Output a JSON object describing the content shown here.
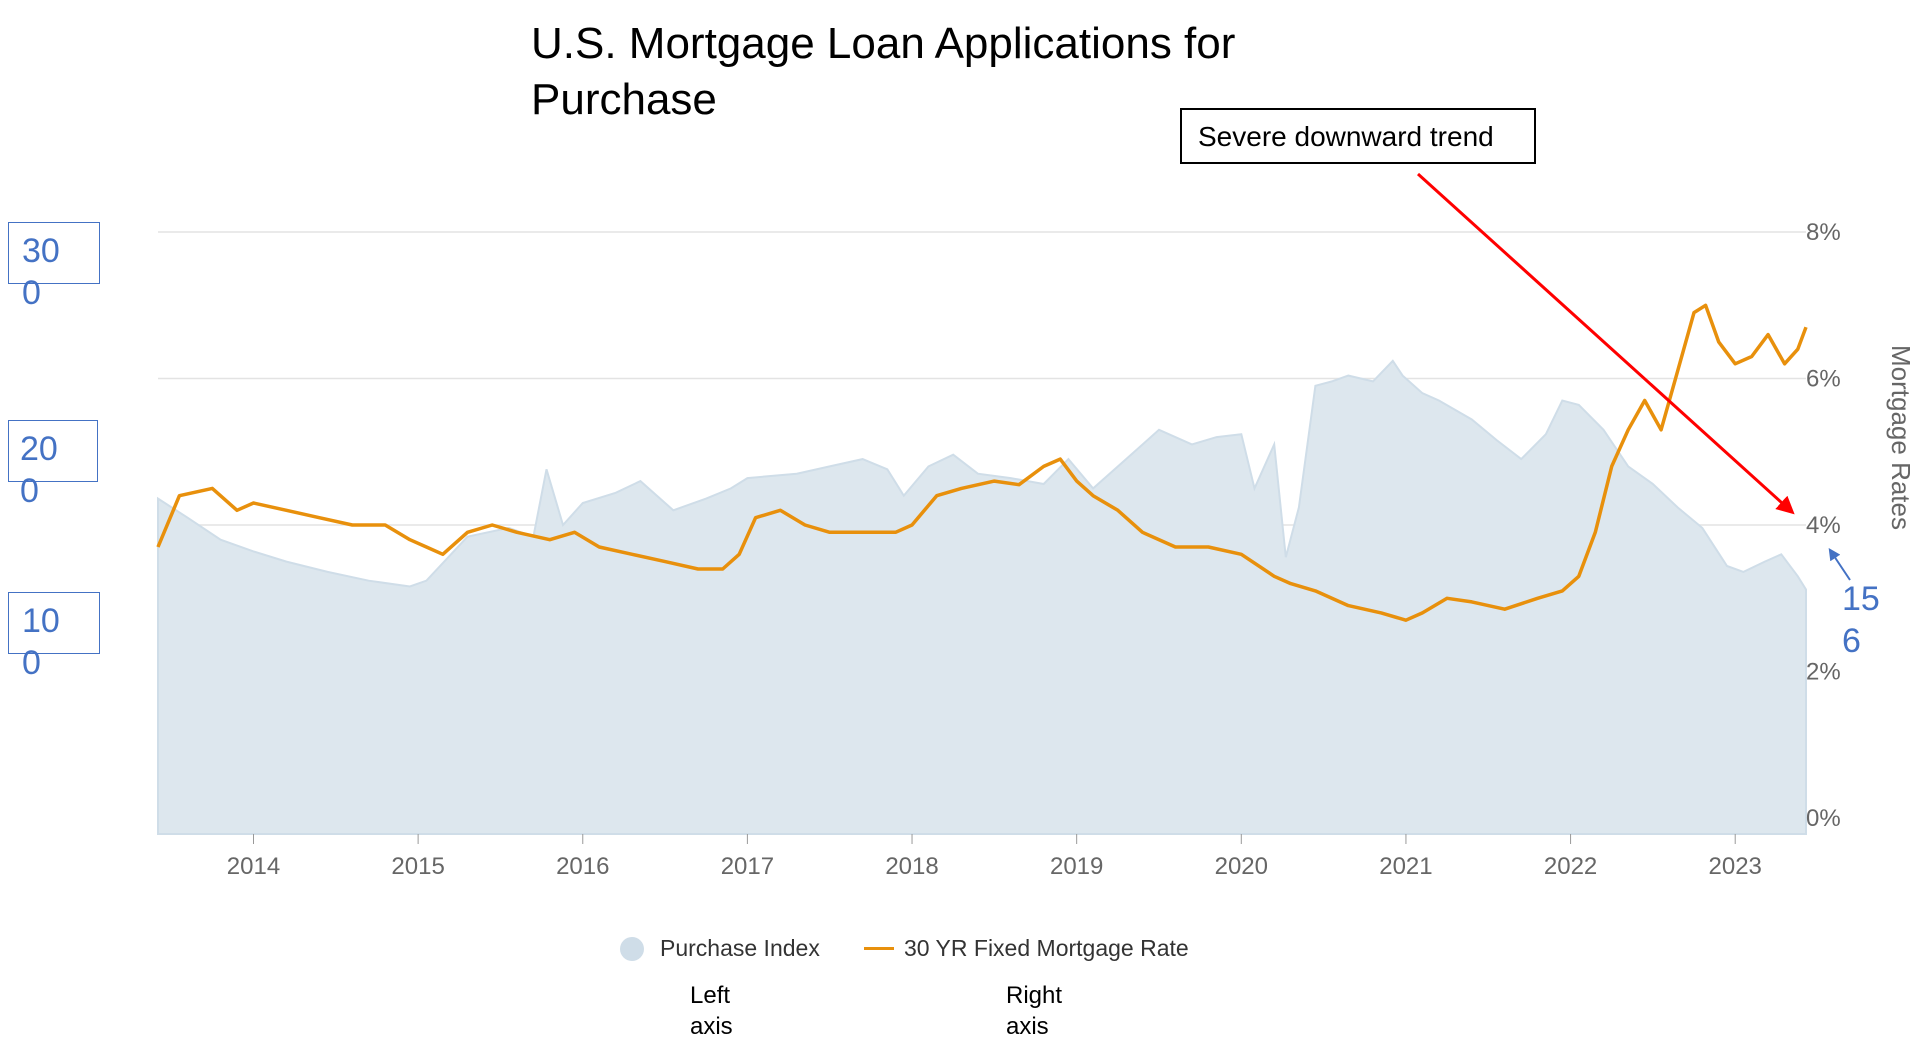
{
  "title": "U.S. Mortgage Loan Applications for Purchase",
  "annotation": "Severe downward trend",
  "left_axis_labels": [
    "300",
    "200",
    "100"
  ],
  "right_value_label": "156",
  "legend": {
    "purchase_index": "Purchase Index",
    "mortgage_rate": "30 YR Fixed Mortgage Rate"
  },
  "axis_captions": {
    "left": "Left axis",
    "right": "Right axis"
  },
  "colors": {
    "purchase_fill": "#dde7ee",
    "purchase_stroke": "#cfdde8",
    "rate_line": "#e8900c",
    "annotation_arrow": "#ff0000",
    "label_blue": "#4472c4",
    "grid": "#e3e3e3"
  },
  "chart_data": {
    "type": "line",
    "series": [
      {
        "name": "Purchase Index",
        "axis": "left",
        "kind": "area",
        "x": [
          2013.42,
          2013.6,
          2013.8,
          2014.0,
          2014.2,
          2014.45,
          2014.7,
          2014.95,
          2015.05,
          2015.3,
          2015.55,
          2015.7,
          2015.78,
          2015.88,
          2016.0,
          2016.2,
          2016.35,
          2016.55,
          2016.75,
          2016.9,
          2017.0,
          2017.3,
          2017.5,
          2017.7,
          2017.85,
          2017.95,
          2018.1,
          2018.25,
          2018.4,
          2018.6,
          2018.8,
          2018.95,
          2019.1,
          2019.3,
          2019.5,
          2019.7,
          2019.85,
          2020.0,
          2020.08,
          2020.2,
          2020.27,
          2020.35,
          2020.45,
          2020.55,
          2020.65,
          2020.8,
          2020.92,
          2020.98,
          2021.1,
          2021.2,
          2021.4,
          2021.55,
          2021.7,
          2021.85,
          2021.95,
          2022.05,
          2022.2,
          2022.35,
          2022.5,
          2022.65,
          2022.8,
          2022.95,
          2023.05,
          2023.18,
          2023.28,
          2023.38,
          2023.43
        ],
        "y": [
          218,
          205,
          190,
          182,
          175,
          168,
          162,
          158,
          162,
          192,
          198,
          192,
          238,
          200,
          215,
          222,
          230,
          210,
          218,
          225,
          232,
          235,
          240,
          245,
          238,
          220,
          240,
          248,
          235,
          232,
          228,
          245,
          225,
          245,
          265,
          255,
          260,
          262,
          225,
          255,
          178,
          212,
          295,
          298,
          302,
          298,
          312,
          302,
          290,
          285,
          272,
          258,
          245,
          262,
          285,
          282,
          265,
          240,
          228,
          212,
          198,
          172,
          168,
          175,
          180,
          165,
          156
        ]
      },
      {
        "name": "30 YR Fixed Mortgage Rate",
        "axis": "right",
        "kind": "line",
        "x": [
          2013.42,
          2013.55,
          2013.75,
          2013.9,
          2014.0,
          2014.2,
          2014.4,
          2014.6,
          2014.8,
          2014.95,
          2015.05,
          2015.15,
          2015.3,
          2015.45,
          2015.6,
          2015.8,
          2015.95,
          2016.1,
          2016.3,
          2016.5,
          2016.7,
          2016.85,
          2016.95,
          2017.05,
          2017.2,
          2017.35,
          2017.5,
          2017.7,
          2017.9,
          2018.0,
          2018.15,
          2018.3,
          2018.5,
          2018.65,
          2018.8,
          2018.9,
          2019.0,
          2019.1,
          2019.25,
          2019.4,
          2019.6,
          2019.8,
          2020.0,
          2020.2,
          2020.3,
          2020.45,
          2020.65,
          2020.85,
          2021.0,
          2021.1,
          2021.25,
          2021.4,
          2021.6,
          2021.8,
          2021.95,
          2022.05,
          2022.15,
          2022.25,
          2022.35,
          2022.45,
          2022.55,
          2022.65,
          2022.75,
          2022.82,
          2022.9,
          2023.0,
          2023.1,
          2023.2,
          2023.3,
          2023.38,
          2023.43
        ],
        "y": [
          3.7,
          4.4,
          4.5,
          4.2,
          4.3,
          4.2,
          4.1,
          4.0,
          4.0,
          3.8,
          3.7,
          3.6,
          3.9,
          4.0,
          3.9,
          3.8,
          3.9,
          3.7,
          3.6,
          3.5,
          3.4,
          3.4,
          3.6,
          4.1,
          4.2,
          4.0,
          3.9,
          3.9,
          3.9,
          4.0,
          4.4,
          4.5,
          4.6,
          4.55,
          4.8,
          4.9,
          4.6,
          4.4,
          4.2,
          3.9,
          3.7,
          3.7,
          3.6,
          3.3,
          3.2,
          3.1,
          2.9,
          2.8,
          2.7,
          2.8,
          3.0,
          2.95,
          2.85,
          3.0,
          3.1,
          3.3,
          3.9,
          4.8,
          5.3,
          5.7,
          5.3,
          6.1,
          6.9,
          7.0,
          6.5,
          6.2,
          6.3,
          6.6,
          6.2,
          6.4,
          6.7
        ]
      }
    ],
    "x_ticks": [
      "2014",
      "2015",
      "2016",
      "2017",
      "2018",
      "2019",
      "2020",
      "2021",
      "2022",
      "2023"
    ],
    "xlim": [
      2013.42,
      2023.43
    ],
    "right_axis": {
      "title": "Mortgage Rates",
      "ticks": [
        "8%",
        "6%",
        "4%",
        "2%",
        "0%"
      ],
      "ylim": [
        0,
        8
      ]
    },
    "left_axis": {
      "ylim": [
        0,
        400
      ]
    },
    "grid": true,
    "legend_position": "bottom"
  }
}
